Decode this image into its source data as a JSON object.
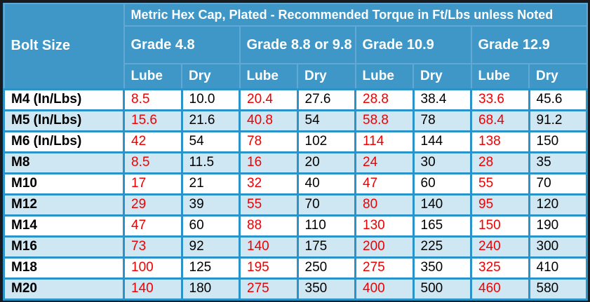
{
  "colors": {
    "header_bg": "#3f97c8",
    "header_border": "#61a9d4",
    "data_border": "#2a93c9",
    "row_bg": "#ffffff",
    "row_alt_bg": "#cfe7f3",
    "lube_text": "#f00000",
    "dry_text": "#000000",
    "header_text": "#ffffff",
    "outer_border": "#171b20"
  },
  "chart_data": {
    "type": "table",
    "title": "Metric Hex Cap, Plated - Recommended Torque in Ft/Lbs unless Noted",
    "row_header": "Bolt Size",
    "column_groups": [
      "Grade 4.8",
      "Grade 8.8 or 9.8",
      "Grade 10.9",
      "Grade 12.9"
    ],
    "sub_columns": [
      "Lube",
      "Dry"
    ],
    "columns_flat": [
      "Bolt Size",
      "Grade 4.8 Lube",
      "Grade 4.8 Dry",
      "Grade 8.8 or 9.8 Lube",
      "Grade 8.8 or 9.8 Dry",
      "Grade 10.9 Lube",
      "Grade 10.9 Dry",
      "Grade 12.9 Lube",
      "Grade 12.9 Dry"
    ],
    "rows": [
      {
        "bolt": "M4 (In/Lbs)",
        "values": [
          "8.5",
          "10.0",
          "20.4",
          "27.6",
          "28.8",
          "38.4",
          "33.6",
          "45.6"
        ]
      },
      {
        "bolt": "M5 (In/Lbs)",
        "values": [
          "15.6",
          "21.6",
          "40.8",
          "54",
          "58.8",
          "78",
          "68.4",
          "91.2"
        ]
      },
      {
        "bolt": "M6 (In/Lbs)",
        "values": [
          "42",
          "54",
          "78",
          "102",
          "114",
          "144",
          "138",
          "150"
        ]
      },
      {
        "bolt": "M8",
        "values": [
          "8.5",
          "11.5",
          "16",
          "20",
          "24",
          "30",
          "28",
          "35"
        ]
      },
      {
        "bolt": "M10",
        "values": [
          "17",
          "21",
          "32",
          "40",
          "47",
          "60",
          "55",
          "70"
        ]
      },
      {
        "bolt": "M12",
        "values": [
          "29",
          "39",
          "55",
          "70",
          "80",
          "140",
          "95",
          "120"
        ]
      },
      {
        "bolt": "M14",
        "values": [
          "47",
          "60",
          "88",
          "110",
          "130",
          "165",
          "150",
          "190"
        ]
      },
      {
        "bolt": "M16",
        "values": [
          "73",
          "92",
          "140",
          "175",
          "200",
          "225",
          "240",
          "300"
        ]
      },
      {
        "bolt": "M18",
        "values": [
          "100",
          "125",
          "195",
          "250",
          "275",
          "350",
          "325",
          "410"
        ]
      },
      {
        "bolt": "M20",
        "values": [
          "140",
          "180",
          "275",
          "350",
          "400",
          "500",
          "460",
          "580"
        ]
      }
    ]
  }
}
